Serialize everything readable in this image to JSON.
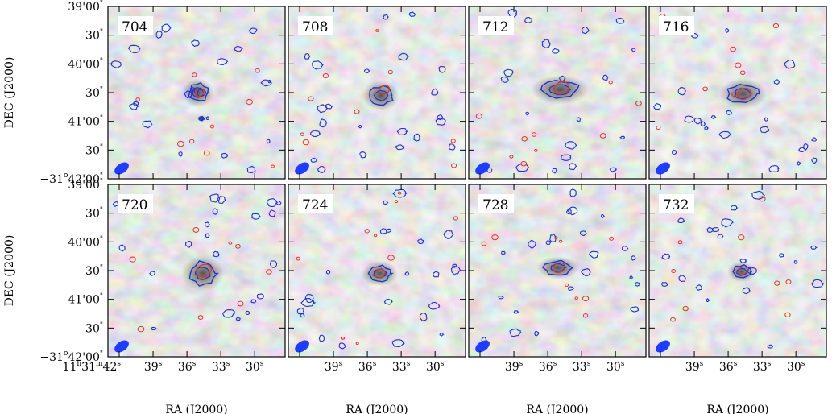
{
  "chart_data": {
    "type": "heatmap",
    "title": "",
    "xlabel": "RA (J2000)",
    "ylabel": "DEC (J2000)",
    "colors": {
      "background_gray": "#bdbdbd",
      "positive_contour": "#2433c9",
      "negative_contour": "#d23a2a",
      "beam": "#1f3cff"
    },
    "panels": [
      {
        "label": "704",
        "blue_blobs": [
          [
            35.0,
            40.5,
            0.3,
            0.28
          ],
          [
            34.7,
            40.95,
            0.08,
            0.06
          ]
        ],
        "red_rings": [
          [
            34.9,
            40.5,
            0.06
          ]
        ]
      },
      {
        "label": "708",
        "blue_blobs": [
          [
            34.8,
            40.55,
            0.35,
            0.3
          ]
        ],
        "red_rings": [
          [
            34.5,
            40.45,
            0.07
          ]
        ]
      },
      {
        "label": "712",
        "blue_blobs": [
          [
            34.9,
            40.45,
            0.55,
            0.28
          ]
        ],
        "red_rings": [
          [
            34.8,
            40.42,
            0.1
          ]
        ]
      },
      {
        "label": "716",
        "blue_blobs": [
          [
            34.7,
            40.52,
            0.45,
            0.3
          ]
        ],
        "red_rings": [
          [
            34.6,
            40.52,
            0.09
          ]
        ]
      },
      {
        "label": "720",
        "blue_blobs": [
          [
            34.6,
            40.55,
            0.4,
            0.35
          ]
        ],
        "red_rings": [
          [
            34.5,
            40.5,
            0.1
          ]
        ]
      },
      {
        "label": "724",
        "blue_blobs": [
          [
            34.9,
            40.55,
            0.35,
            0.25
          ]
        ],
        "red_rings": [
          [
            34.9,
            40.55,
            0.07
          ]
        ]
      },
      {
        "label": "728",
        "blue_blobs": [
          [
            35.1,
            40.45,
            0.4,
            0.22
          ]
        ],
        "red_rings": [
          [
            35.0,
            40.45,
            0.08
          ]
        ]
      },
      {
        "label": "732",
        "blue_blobs": [
          [
            34.8,
            40.52,
            0.28,
            0.2
          ]
        ],
        "red_rings": [
          [
            34.7,
            40.5,
            0.06
          ]
        ]
      }
    ],
    "ra_range_sec": [
      43.0,
      27.3
    ],
    "dec_range_arcmin": [
      39.0,
      42.0
    ],
    "x_ticks": [
      {
        "value": 39,
        "label_main": "39",
        "label_sup": "s"
      },
      {
        "value": 36,
        "label_main": "36",
        "label_sup": "s"
      },
      {
        "value": 33,
        "label_main": "33",
        "label_sup": "s"
      },
      {
        "value": 30,
        "label_main": "30",
        "label_sup": "s"
      }
    ],
    "x_first_tick": {
      "value": 42,
      "label": "11",
      "h": "h",
      "mid": "31",
      "m": "m",
      "sec": "42",
      "s": "s"
    },
    "y_ticks_top": [
      {
        "value": 39.0,
        "deg": "",
        "main": "39",
        "sub": "'00",
        "dprime": "\""
      },
      {
        "value": 39.5,
        "deg": "",
        "main": "",
        "sub": "30",
        "dprime": "\""
      },
      {
        "value": 40.0,
        "deg": "",
        "main": "40",
        "sub": "'00",
        "dprime": "\""
      },
      {
        "value": 40.5,
        "deg": "",
        "main": "",
        "sub": "30",
        "dprime": "\""
      },
      {
        "value": 41.0,
        "deg": "",
        "main": "41",
        "sub": "'00",
        "dprime": "\""
      },
      {
        "value": 41.5,
        "deg": "",
        "main": "",
        "sub": "30",
        "dprime": "\""
      }
    ],
    "y_origin_label": {
      "sign": "−31",
      "deg": "o",
      "rest": "42'00",
      "dprime": "\""
    }
  }
}
